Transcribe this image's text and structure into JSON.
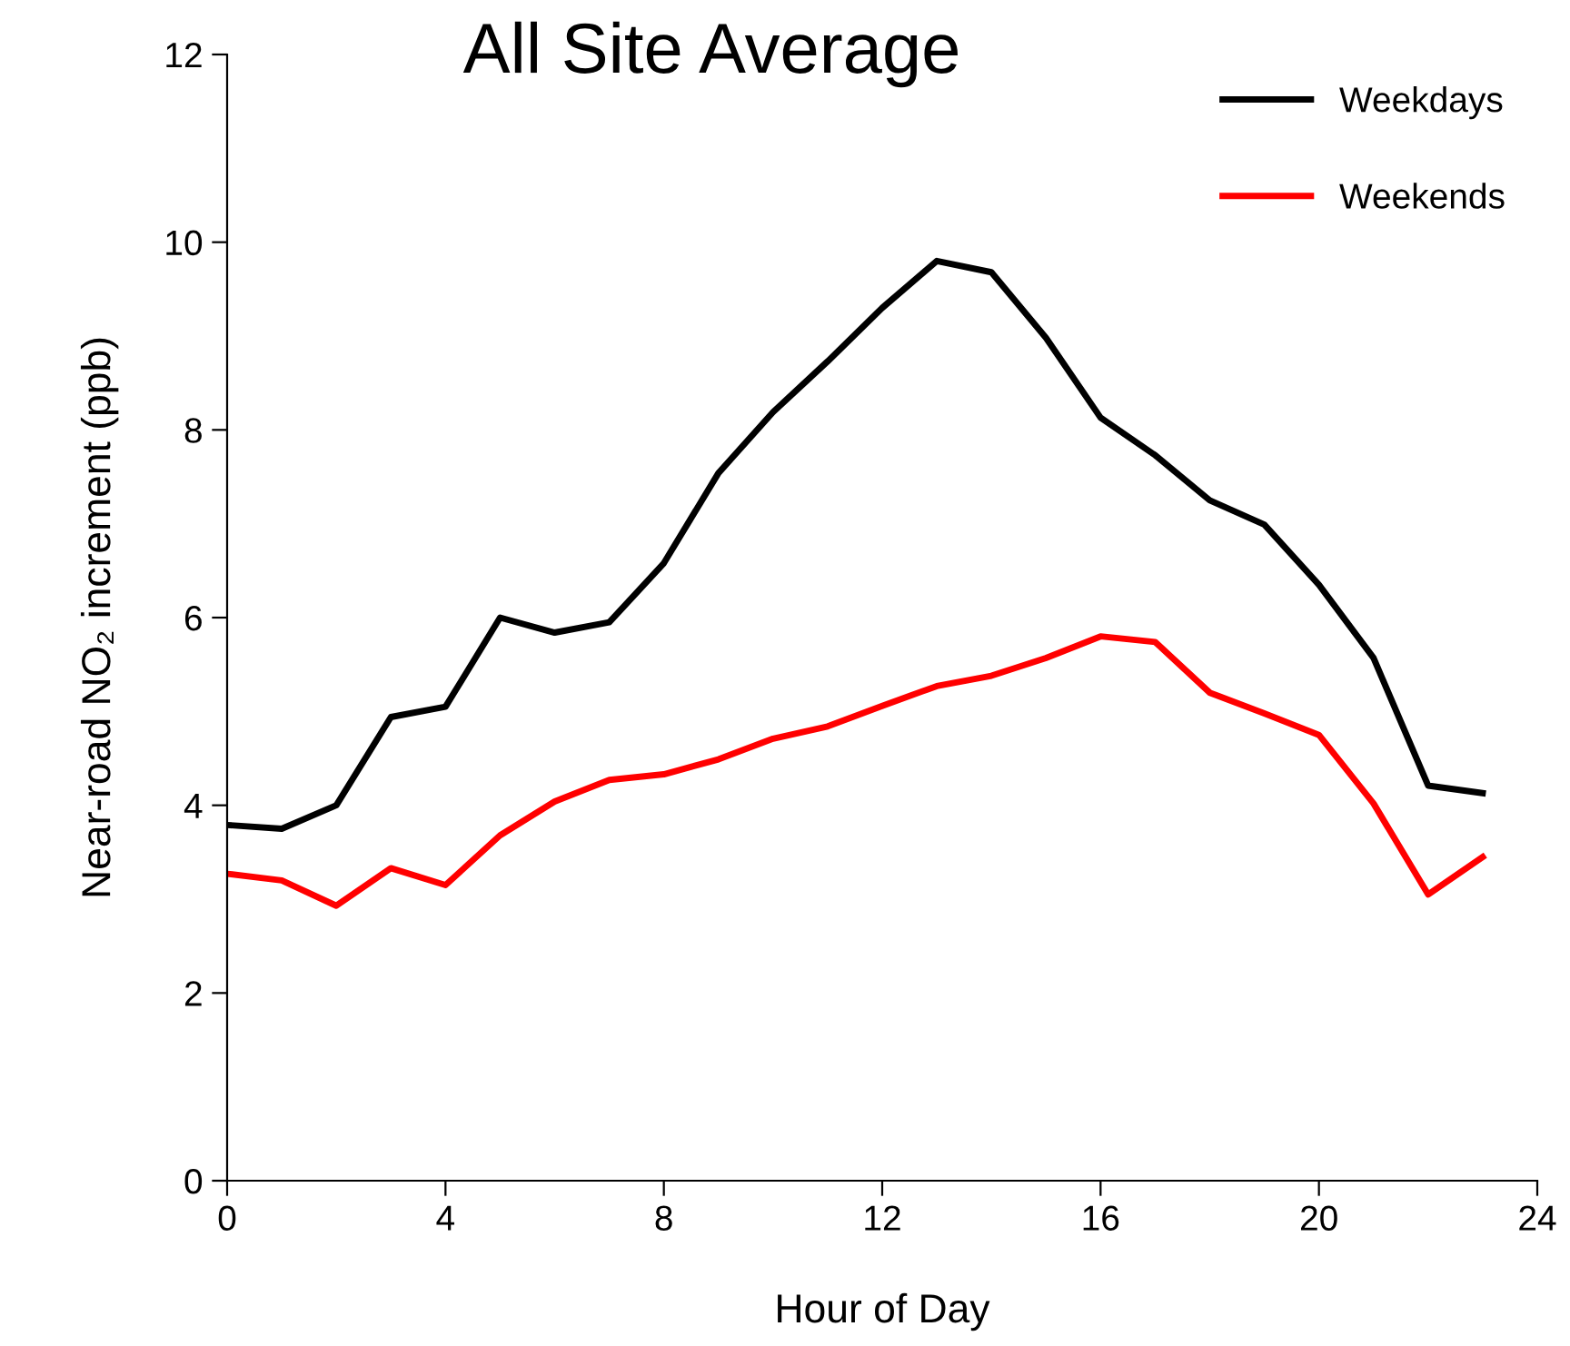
{
  "chart_data": {
    "type": "line",
    "title": "All Site Average",
    "xlabel": "Hour of Day",
    "ylabel": "Near-road NO₂ increment (ppb)",
    "x": [
      0,
      1,
      2,
      3,
      4,
      5,
      6,
      7,
      8,
      9,
      10,
      11,
      12,
      13,
      14,
      15,
      16,
      17,
      18,
      19,
      20,
      21,
      22,
      23
    ],
    "series": [
      {
        "name": "Weekdays",
        "color": "#000000",
        "values": [
          3.79,
          3.75,
          4.0,
          4.94,
          5.05,
          6.0,
          5.84,
          5.95,
          6.58,
          7.54,
          8.19,
          8.73,
          9.3,
          9.8,
          9.68,
          8.98,
          8.13,
          7.73,
          7.25,
          6.99,
          6.35,
          5.57,
          4.21,
          4.13
        ]
      },
      {
        "name": "Weekends",
        "color": "#ff0000",
        "values": [
          3.27,
          3.2,
          2.93,
          3.33,
          3.15,
          3.68,
          4.04,
          4.27,
          4.33,
          4.49,
          4.71,
          4.84,
          5.06,
          5.27,
          5.38,
          5.57,
          5.8,
          5.74,
          5.2,
          4.98,
          4.75,
          4.02,
          3.05,
          3.45
        ]
      }
    ],
    "xlim": [
      0,
      24
    ],
    "xticks": [
      0,
      4,
      8,
      12,
      16,
      20,
      24
    ],
    "ylim": [
      0,
      12
    ],
    "yticks": [
      0,
      2,
      4,
      6,
      8,
      10,
      12
    ],
    "grid": false,
    "legend": "top right",
    "marker": "none",
    "line_style": "solid"
  }
}
